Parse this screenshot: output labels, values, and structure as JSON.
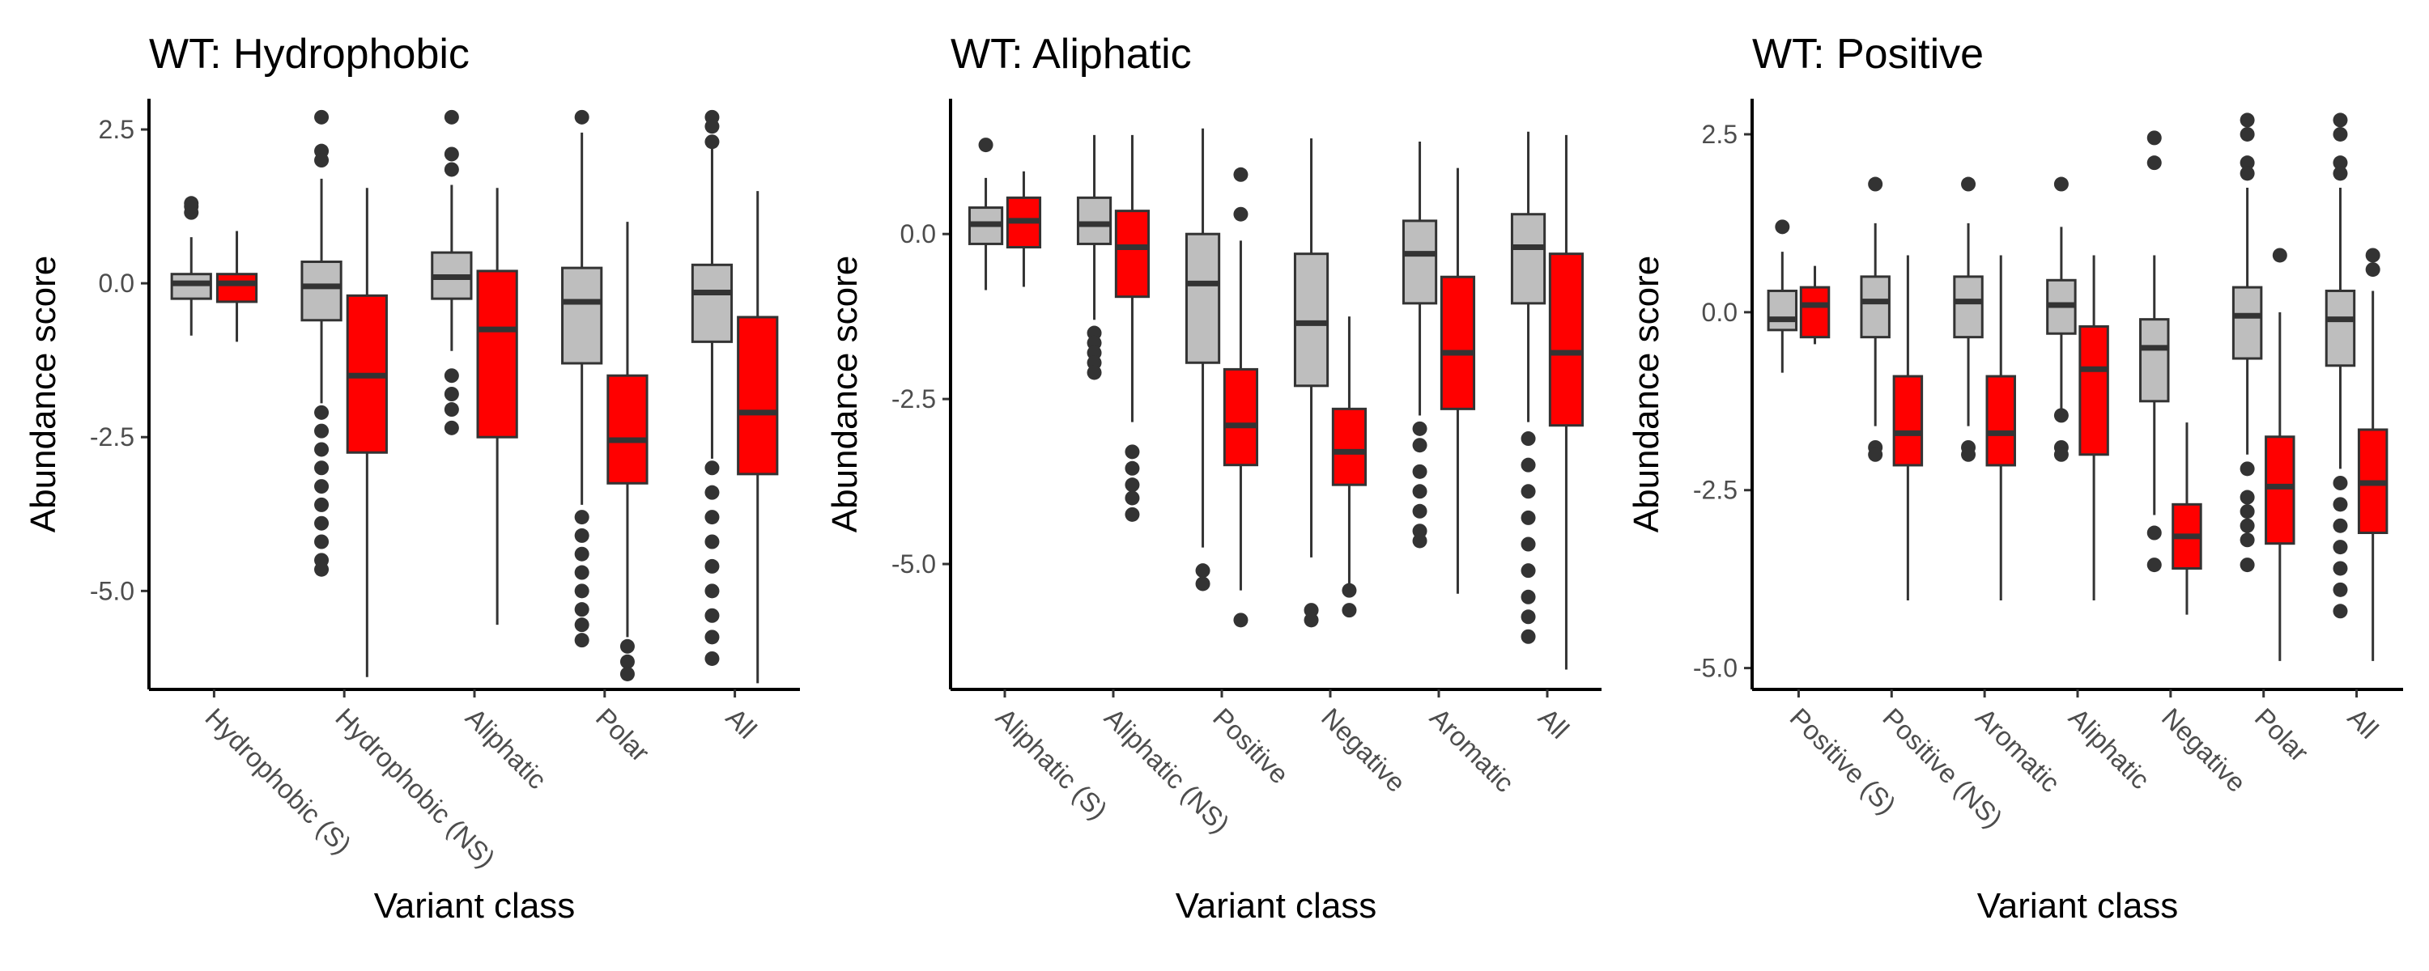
{
  "colors": {
    "wt": "#bebebe",
    "mut": "#ff0000",
    "line": "#333333"
  },
  "chart_data": [
    {
      "type": "box",
      "title": "WT: Hydrophobic",
      "xlabel": "Variant class",
      "ylabel": "Abundance score",
      "ylim": [
        -6.6,
        3.0
      ],
      "yticks": [
        2.5,
        0.0,
        -2.5,
        -5.0
      ],
      "ytick_labels": [
        "2.5",
        "0.0",
        "-2.5",
        "-5.0"
      ],
      "categories": [
        "Hydrophobic (S)",
        "Hydrophobic (NS)",
        "Aliphatic",
        "Polar",
        "All"
      ],
      "boxes": [
        {
          "category": "Hydrophobic (S)",
          "group": "wt",
          "q1": -0.25,
          "median": 0.0,
          "q3": 0.15,
          "lower": -0.85,
          "upper": 0.75,
          "outliers": [
            1.15,
            1.25,
            1.3
          ]
        },
        {
          "category": "Hydrophobic (S)",
          "group": "mut",
          "q1": -0.3,
          "median": 0.0,
          "q3": 0.15,
          "lower": -0.95,
          "upper": 0.85,
          "outliers": []
        },
        {
          "category": "Hydrophobic (NS)",
          "group": "wt",
          "q1": -0.6,
          "median": -0.05,
          "q3": 0.35,
          "lower": -1.95,
          "upper": 1.7,
          "outliers": [
            2.7,
            2.15,
            2.0,
            -2.1,
            -2.4,
            -2.7,
            -3.0,
            -3.3,
            -3.6,
            -3.9,
            -4.2,
            -4.5,
            -4.65
          ]
        },
        {
          "category": "Hydrophobic (NS)",
          "group": "mut",
          "q1": -2.75,
          "median": -1.5,
          "q3": -0.2,
          "lower": -6.4,
          "upper": 1.55,
          "outliers": []
        },
        {
          "category": "Aliphatic",
          "group": "wt",
          "q1": -0.25,
          "median": 0.1,
          "q3": 0.5,
          "lower": -1.1,
          "upper": 1.6,
          "outliers": [
            2.7,
            2.1,
            1.85,
            -1.5,
            -1.8,
            -2.05,
            -2.35
          ]
        },
        {
          "category": "Aliphatic",
          "group": "mut",
          "q1": -2.5,
          "median": -0.75,
          "q3": 0.2,
          "lower": -5.55,
          "upper": 1.55,
          "outliers": []
        },
        {
          "category": "Polar",
          "group": "wt",
          "q1": -1.3,
          "median": -0.3,
          "q3": 0.25,
          "lower": -3.6,
          "upper": 2.45,
          "outliers": [
            2.7,
            -3.8,
            -4.1,
            -4.4,
            -4.7,
            -5.0,
            -5.3,
            -5.55,
            -5.8
          ]
        },
        {
          "category": "Polar",
          "group": "mut",
          "q1": -3.25,
          "median": -2.55,
          "q3": -1.5,
          "lower": -5.75,
          "upper": 1.0,
          "outliers": [
            -5.9,
            -6.15,
            -6.35
          ]
        },
        {
          "category": "All",
          "group": "wt",
          "q1": -0.95,
          "median": -0.15,
          "q3": 0.3,
          "lower": -2.85,
          "upper": 2.2,
          "outliers": [
            2.7,
            2.55,
            2.3,
            -3.0,
            -3.4,
            -3.8,
            -4.2,
            -4.6,
            -5.0,
            -5.4,
            -5.75,
            -6.1
          ]
        },
        {
          "category": "All",
          "group": "mut",
          "q1": -3.1,
          "median": -2.1,
          "q3": -0.55,
          "lower": -6.5,
          "upper": 1.5,
          "outliers": []
        }
      ]
    },
    {
      "type": "box",
      "title": "WT: Aliphatic",
      "xlabel": "Variant class",
      "ylabel": "Abundance score",
      "ylim": [
        -6.9,
        2.05
      ],
      "yticks": [
        0.0,
        -2.5,
        -5.0
      ],
      "ytick_labels": [
        "0.0",
        "-2.5",
        "-5.0"
      ],
      "categories": [
        "Aliphatic (S)",
        "Aliphatic (NS)",
        "Positive",
        "Negative",
        "Aromatic",
        "All"
      ],
      "boxes": [
        {
          "category": "Aliphatic (S)",
          "group": "wt",
          "q1": -0.15,
          "median": 0.15,
          "q3": 0.4,
          "lower": -0.85,
          "upper": 0.85,
          "outliers": [
            1.35
          ]
        },
        {
          "category": "Aliphatic (S)",
          "group": "mut",
          "q1": -0.2,
          "median": 0.2,
          "q3": 0.55,
          "lower": -0.8,
          "upper": 0.95,
          "outliers": []
        },
        {
          "category": "Aliphatic (NS)",
          "group": "wt",
          "q1": -0.15,
          "median": 0.15,
          "q3": 0.55,
          "lower": -1.3,
          "upper": 1.5,
          "outliers": [
            -1.5,
            -1.65,
            -1.8,
            -1.95,
            -2.1
          ]
        },
        {
          "category": "Aliphatic (NS)",
          "group": "mut",
          "q1": -0.95,
          "median": -0.2,
          "q3": 0.35,
          "lower": -2.85,
          "upper": 1.5,
          "outliers": [
            -3.3,
            -3.55,
            -3.8,
            -4.0,
            -4.25
          ]
        },
        {
          "category": "Positive",
          "group": "wt",
          "q1": -1.95,
          "median": -0.75,
          "q3": 0.0,
          "lower": -4.75,
          "upper": 1.6,
          "outliers": [
            -5.1,
            -5.3
          ]
        },
        {
          "category": "Positive",
          "group": "mut",
          "q1": -3.5,
          "median": -2.9,
          "q3": -2.05,
          "lower": -5.4,
          "upper": -0.1,
          "outliers": [
            0.9,
            0.3,
            -5.85
          ]
        },
        {
          "category": "Negative",
          "group": "wt",
          "q1": -2.3,
          "median": -1.35,
          "q3": -0.3,
          "lower": -4.9,
          "upper": 1.45,
          "outliers": [
            -5.7,
            -5.85
          ]
        },
        {
          "category": "Negative",
          "group": "mut",
          "q1": -3.8,
          "median": -3.3,
          "q3": -2.65,
          "lower": -5.3,
          "upper": -1.25,
          "outliers": [
            -5.4,
            -5.7
          ]
        },
        {
          "category": "Aromatic",
          "group": "wt",
          "q1": -1.05,
          "median": -0.3,
          "q3": 0.2,
          "lower": -2.75,
          "upper": 1.4,
          "outliers": [
            -2.95,
            -3.2,
            -3.6,
            -3.9,
            -4.2,
            -4.5,
            -4.65
          ]
        },
        {
          "category": "Aromatic",
          "group": "mut",
          "q1": -2.65,
          "median": -1.8,
          "q3": -0.65,
          "lower": -5.45,
          "upper": 1.0,
          "outliers": []
        },
        {
          "category": "All",
          "group": "wt",
          "q1": -1.05,
          "median": -0.2,
          "q3": 0.3,
          "lower": -2.85,
          "upper": 1.55,
          "outliers": [
            -3.1,
            -3.5,
            -3.9,
            -4.3,
            -4.7,
            -5.1,
            -5.5,
            -5.8,
            -6.1
          ]
        },
        {
          "category": "All",
          "group": "mut",
          "q1": -2.9,
          "median": -1.8,
          "q3": -0.3,
          "lower": -6.6,
          "upper": 1.5,
          "outliers": []
        }
      ]
    },
    {
      "type": "box",
      "title": "WT: Positive",
      "xlabel": "Variant class",
      "ylabel": "Abundance score",
      "ylim": [
        -5.3,
        3.0
      ],
      "yticks": [
        2.5,
        0.0,
        -2.5,
        -5.0
      ],
      "ytick_labels": [
        "2.5",
        "0.0",
        "-2.5",
        "-5.0"
      ],
      "categories": [
        "Positive (S)",
        "Positive (NS)",
        "Aromatic",
        "Aliphatic",
        "Negative",
        "Polar",
        "All"
      ],
      "boxes": [
        {
          "category": "Positive (S)",
          "group": "wt",
          "q1": -0.25,
          "median": -0.1,
          "q3": 0.3,
          "lower": -0.85,
          "upper": 0.85,
          "outliers": [
            1.2
          ]
        },
        {
          "category": "Positive (S)",
          "group": "mut",
          "q1": -0.35,
          "median": 0.1,
          "q3": 0.35,
          "lower": -0.45,
          "upper": 0.65,
          "outliers": []
        },
        {
          "category": "Positive (NS)",
          "group": "wt",
          "q1": -0.35,
          "median": 0.15,
          "q3": 0.5,
          "lower": -1.6,
          "upper": 1.25,
          "outliers": [
            1.8,
            -1.9,
            -2.0
          ]
        },
        {
          "category": "Positive (NS)",
          "group": "mut",
          "q1": -2.15,
          "median": -1.7,
          "q3": -0.9,
          "lower": -4.05,
          "upper": 0.8,
          "outliers": []
        },
        {
          "category": "Aromatic",
          "group": "wt",
          "q1": -0.35,
          "median": 0.15,
          "q3": 0.5,
          "lower": -1.6,
          "upper": 1.25,
          "outliers": [
            1.8,
            -1.9,
            -2.0
          ]
        },
        {
          "category": "Aromatic",
          "group": "mut",
          "q1": -2.15,
          "median": -1.7,
          "q3": -0.9,
          "lower": -4.05,
          "upper": 0.8,
          "outliers": []
        },
        {
          "category": "Aliphatic",
          "group": "wt",
          "q1": -0.3,
          "median": 0.1,
          "q3": 0.45,
          "lower": -1.35,
          "upper": 1.2,
          "outliers": [
            1.8,
            -1.45,
            -1.9,
            -2.0
          ]
        },
        {
          "category": "Aliphatic",
          "group": "mut",
          "q1": -2.0,
          "median": -0.8,
          "q3": -0.2,
          "lower": -4.05,
          "upper": 0.8,
          "outliers": []
        },
        {
          "category": "Negative",
          "group": "wt",
          "q1": -1.25,
          "median": -0.5,
          "q3": -0.1,
          "lower": -2.85,
          "upper": 0.8,
          "outliers": [
            2.45,
            2.1,
            -3.1,
            -3.55
          ]
        },
        {
          "category": "Negative",
          "group": "mut",
          "q1": -3.6,
          "median": -3.15,
          "q3": -2.7,
          "lower": -4.25,
          "upper": -1.55,
          "outliers": []
        },
        {
          "category": "Polar",
          "group": "wt",
          "q1": -0.65,
          "median": -0.05,
          "q3": 0.35,
          "lower": -2.0,
          "upper": 1.75,
          "outliers": [
            2.7,
            2.5,
            2.1,
            1.95,
            -2.2,
            -2.6,
            -2.8,
            -3.0,
            -3.2,
            -3.55
          ]
        },
        {
          "category": "Polar",
          "group": "mut",
          "q1": -3.25,
          "median": -2.45,
          "q3": -1.75,
          "lower": -4.9,
          "upper": 0.0,
          "outliers": [
            0.8
          ]
        },
        {
          "category": "All",
          "group": "wt",
          "q1": -0.75,
          "median": -0.1,
          "q3": 0.3,
          "lower": -2.2,
          "upper": 1.75,
          "outliers": [
            2.7,
            2.5,
            2.1,
            1.95,
            -2.4,
            -2.7,
            -3.0,
            -3.3,
            -3.6,
            -3.9,
            -4.2
          ]
        },
        {
          "category": "All",
          "group": "mut",
          "q1": -3.1,
          "median": -2.4,
          "q3": -1.65,
          "lower": -4.9,
          "upper": 0.3,
          "outliers": [
            0.8,
            0.6
          ]
        }
      ]
    }
  ]
}
